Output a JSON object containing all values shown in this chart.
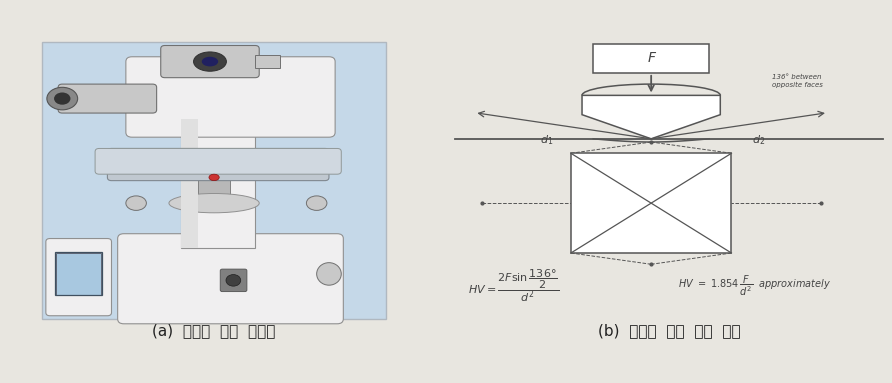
{
  "fig_width": 8.92,
  "fig_height": 3.83,
  "dpi": 100,
  "bg_color": "#e8e6e0",
  "left_panel": {
    "label": "(a)  비커스  경도  시험기",
    "photo_bg": "#c5d8e8",
    "machine_body": "#f0eff0",
    "machine_dark": "#c8c8c8",
    "machine_edge": "#909090"
  },
  "right_panel": {
    "label": "(b)  비커스  경도  측정  원리",
    "bg_color": "#f5f4f0",
    "line_color": "#555555",
    "text_color": "#444444",
    "annotation_text": "136° between\nopposite faces",
    "d1_label": "d1",
    "d2_label": "d2"
  },
  "caption_fontsize": 11,
  "caption_color": "#222222"
}
